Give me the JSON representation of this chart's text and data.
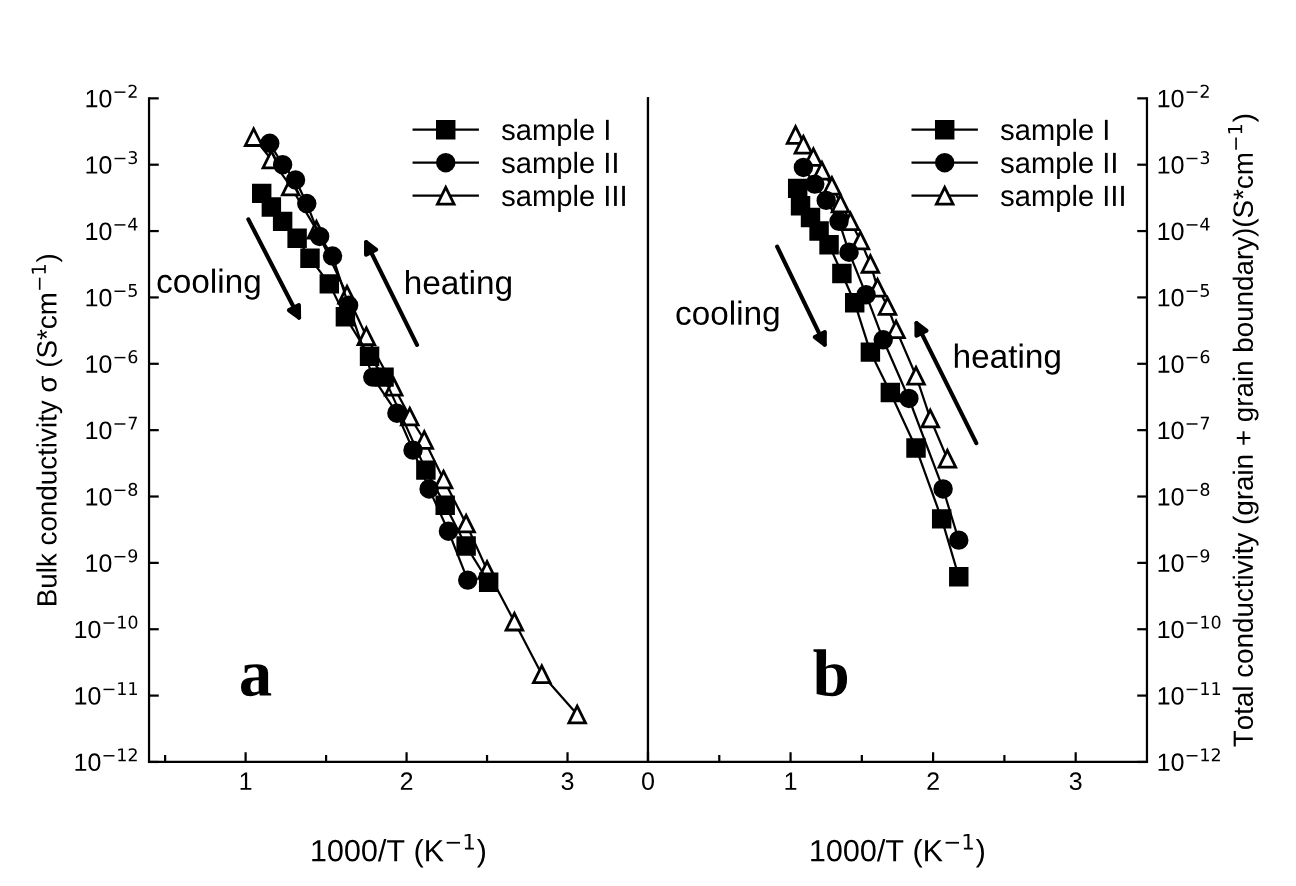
{
  "chart_data": [
    {
      "type": "line",
      "xlabel": "1000/T (K$^{−1}$)",
      "ylabel": "Bulk conductivity σ (S*cm$^{−1}$)",
      "log": "y",
      "legend": "top right",
      "line_style": "solid",
      "grid": false,
      "xlim": [
        0.4,
        3.5
      ],
      "xticks": [
        {
          "value": 0.5,
          "label": null
        },
        1,
        {
          "value": 1.5,
          "label": null
        },
        2,
        {
          "value": 2.5,
          "label": null
        },
        3
      ],
      "ylim": [
        1e-12,
        0.01
      ],
      "yticks": [
        {
          "value": 1e-12,
          "label": "10$^{−12}$"
        },
        {
          "value": 1e-11,
          "label": "10$^{−11}$"
        },
        {
          "value": 1e-10,
          "label": "10$^{−10}$"
        },
        {
          "value": 1e-09,
          "label": "10$^{−9}$"
        },
        {
          "value": 1e-08,
          "label": "10$^{−8}$"
        },
        {
          "value": 1e-07,
          "label": "10$^{−7}$"
        },
        {
          "value": 1e-06,
          "label": "10$^{−6}$"
        },
        {
          "value": 1e-05,
          "label": "10$^{−5}$"
        },
        {
          "value": 0.0001,
          "label": "10$^{−4}$"
        },
        {
          "value": 0.001,
          "label": "10$^{−3}$"
        },
        {
          "value": 0.01,
          "label": "10$^{−2}$"
        }
      ],
      "annotations": [
        "cooling",
        "heating",
        "a"
      ],
      "series": [
        {
          "name": "sample I",
          "color": "#000000",
          "marker": "square",
          "x": [
            1.1,
            1.16,
            1.23,
            1.32,
            1.4,
            1.52,
            1.62,
            1.77,
            1.86,
            2.12,
            2.24,
            2.37,
            2.51
          ],
          "values": [
            0.00037,
            0.00023,
            0.00014,
            7.8e-05,
            3.9e-05,
            1.6e-05,
            5.1e-06,
            1.3e-06,
            6.3e-07,
            2.5e-08,
            7.4e-09,
            1.8e-09,
            5.1e-10
          ]
        },
        {
          "name": "sample II",
          "color": "#000000",
          "marker": "circle",
          "x": [
            1.15,
            1.23,
            1.31,
            1.38,
            1.46,
            1.54,
            1.64,
            1.79,
            1.94,
            2.04,
            2.14,
            2.26,
            2.38
          ],
          "values": [
            0.0021,
            0.001,
            0.00059,
            0.00026,
            8.3e-05,
            4.2e-05,
            7.6e-06,
            6.3e-07,
            1.8e-07,
            5e-08,
            1.3e-08,
            3e-09,
            5.5e-10
          ]
        },
        {
          "name": "sample III",
          "color": "#000000",
          "marker": "triangle",
          "x": [
            1.05,
            1.16,
            1.28,
            1.44,
            1.63,
            1.75,
            1.92,
            2.02,
            2.11,
            2.23,
            2.37,
            2.5,
            2.67,
            2.84,
            3.06
          ],
          "values": [
            0.0026,
            0.0012,
            0.00047,
            0.000105,
            1.1e-05,
            2.6e-06,
            4.5e-07,
            1.6e-07,
            7.1e-08,
            1.8e-08,
            3.9e-09,
            7.8e-10,
            1.3e-10,
            2.1e-11,
            5.2e-12
          ]
        }
      ]
    },
    {
      "type": "line",
      "xlabel": "1000/T (K$^{−1}$)",
      "y2label": "Total conductivity (grain + grain boundary)(S*cm$^{−1}$)",
      "log": "y2",
      "legend": "top right",
      "line_style": "solid",
      "grid": false,
      "xlim": [
        0,
        3.5
      ],
      "xticks": [
        0,
        {
          "value": 0.5,
          "label": null
        },
        1,
        {
          "value": 1.5,
          "label": null
        },
        2,
        {
          "value": 2.5,
          "label": null
        },
        3
      ],
      "y2lim": [
        1e-12,
        0.01
      ],
      "y2ticks": [
        {
          "value": 1e-12,
          "label": "10$^{−12}$"
        },
        {
          "value": 1e-11,
          "label": "10$^{−11}$"
        },
        {
          "value": 1e-10,
          "label": "10$^{−10}$"
        },
        {
          "value": 1e-09,
          "label": "10$^{−9}$"
        },
        {
          "value": 1e-08,
          "label": "10$^{−8}$"
        },
        {
          "value": 1e-07,
          "label": "10$^{−7}$"
        },
        {
          "value": 1e-06,
          "label": "10$^{−6}$"
        },
        {
          "value": 1e-05,
          "label": "10$^{−5}$"
        },
        {
          "value": 0.0001,
          "label": "10$^{−4}$"
        },
        {
          "value": 0.001,
          "label": "10$^{−3}$"
        },
        {
          "value": 0.01,
          "label": "10$^{−2}$"
        }
      ],
      "annotations": [
        "cooling",
        "heating",
        "b"
      ],
      "series": [
        {
          "name": "sample I",
          "color": "#000000",
          "marker": "square",
          "axis": "y2",
          "x": [
            1.05,
            1.07,
            1.14,
            1.2,
            1.27,
            1.36,
            1.45,
            1.56,
            1.7,
            1.88,
            2.06,
            2.18
          ],
          "values": [
            0.00044,
            0.00024,
            0.00016,
            0.0001,
            6.2e-05,
            2.3e-05,
            8.3e-06,
            1.5e-06,
            3.7e-07,
            5.4e-08,
            4.6e-09,
            6.2e-10
          ]
        },
        {
          "name": "sample II",
          "color": "#000000",
          "marker": "circle",
          "axis": "y2",
          "x": [
            1.09,
            1.17,
            1.25,
            1.34,
            1.41,
            1.53,
            1.65,
            1.83,
            2.07,
            2.18
          ],
          "values": [
            0.00091,
            0.00051,
            0.00029,
            0.00014,
            4.8e-05,
            1.1e-05,
            2.3e-06,
            3e-07,
            1.3e-08,
            2.2e-09
          ]
        },
        {
          "name": "sample III",
          "color": "#000000",
          "marker": "triangle",
          "axis": "y2",
          "x": [
            1.035,
            1.09,
            1.16,
            1.22,
            1.29,
            1.35,
            1.42,
            1.49,
            1.56,
            1.61,
            1.68,
            1.74,
            1.88,
            1.98,
            2.1
          ],
          "values": [
            0.0028,
            0.002,
            0.0013,
            0.00081,
            0.00048,
            0.00026,
            0.00014,
            7.2e-05,
            3.2e-05,
            1.4e-05,
            7.4e-06,
            3.3e-06,
            6.6e-07,
            1.5e-07,
            3.7e-08
          ]
        }
      ]
    }
  ]
}
